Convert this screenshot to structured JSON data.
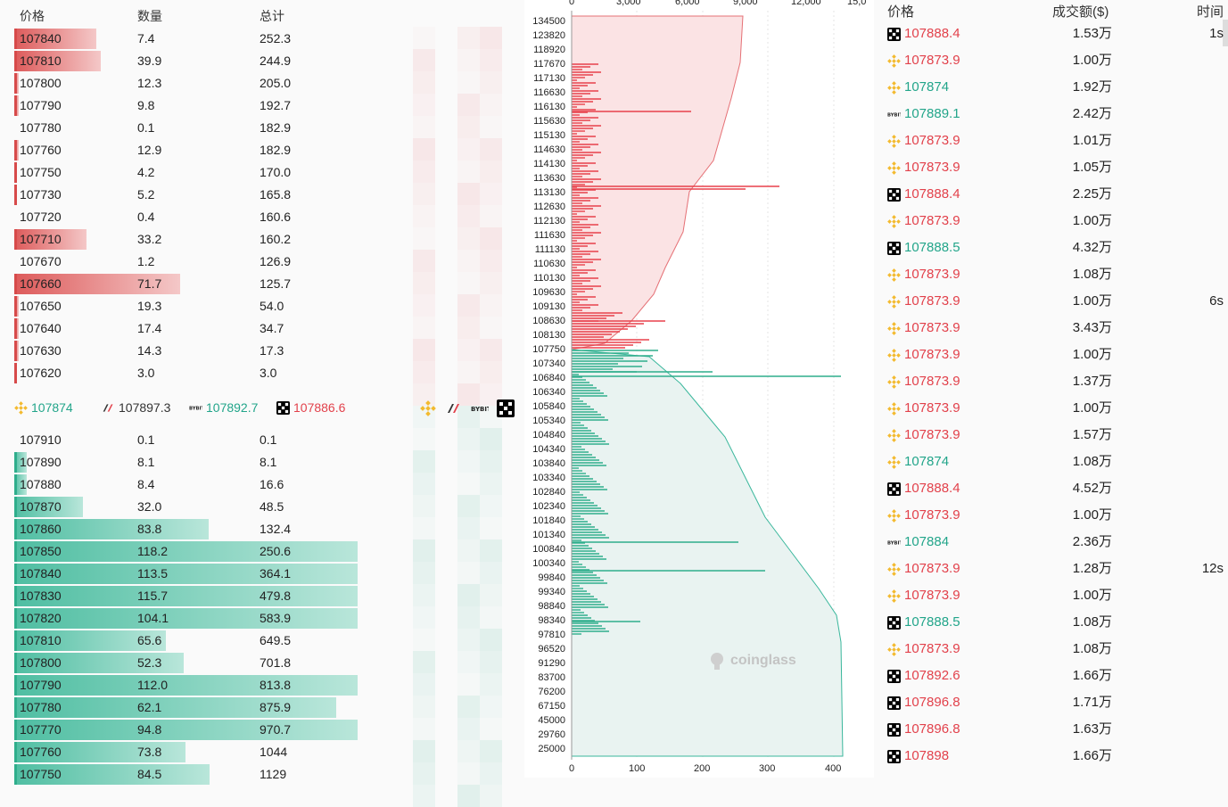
{
  "orderbook": {
    "headers": {
      "price": "价格",
      "qty": "数量",
      "total": "总计"
    },
    "asks": [
      {
        "price": "107840",
        "qty": "7.4",
        "total": "252.3",
        "w": 92
      },
      {
        "price": "107810",
        "qty": "39.9",
        "total": "244.9",
        "w": 97
      },
      {
        "price": "107800",
        "qty": "12.3",
        "total": "205.0",
        "w": 5
      },
      {
        "price": "107790",
        "qty": "9.8",
        "total": "192.7",
        "w": 5
      },
      {
        "price": "107780",
        "qty": "0.1",
        "total": "182.9",
        "w": 0
      },
      {
        "price": "107760",
        "qty": "12.9",
        "total": "182.9",
        "w": 5
      },
      {
        "price": "107750",
        "qty": "4.2",
        "total": "170.0",
        "w": 2
      },
      {
        "price": "107730",
        "qty": "5.2",
        "total": "165.8",
        "w": 3
      },
      {
        "price": "107720",
        "qty": "0.4",
        "total": "160.6",
        "w": 0
      },
      {
        "price": "107710",
        "qty": "33.2",
        "total": "160.2",
        "w": 81
      },
      {
        "price": "107670",
        "qty": "1.2",
        "total": "126.9",
        "w": 0
      },
      {
        "price": "107660",
        "qty": "71.7",
        "total": "125.7",
        "w": 186
      },
      {
        "price": "107650",
        "qty": "19.3",
        "total": "54.0",
        "w": 5
      },
      {
        "price": "107640",
        "qty": "17.4",
        "total": "34.7",
        "w": 5
      },
      {
        "price": "107630",
        "qty": "14.3",
        "total": "17.3",
        "w": 5
      },
      {
        "price": "107620",
        "qty": "3.0",
        "total": "3.0",
        "w": 3
      }
    ],
    "bids": [
      {
        "price": "107910",
        "qty": "0.1",
        "total": "0.1",
        "w": 0
      },
      {
        "price": "107890",
        "qty": "8.1",
        "total": "8.1",
        "w": 14
      },
      {
        "price": "107880",
        "qty": "8.4",
        "total": "16.6",
        "w": 14
      },
      {
        "price": "107870",
        "qty": "32.0",
        "total": "48.5",
        "w": 77
      },
      {
        "price": "107860",
        "qty": "83.8",
        "total": "132.4",
        "w": 218
      },
      {
        "price": "107850",
        "qty": "118.2",
        "total": "250.6",
        "w": 385
      },
      {
        "price": "107840",
        "qty": "113.5",
        "total": "364.1",
        "w": 385
      },
      {
        "price": "107830",
        "qty": "115.7",
        "total": "479.8",
        "w": 385
      },
      {
        "price": "107820",
        "qty": "104.1",
        "total": "583.9",
        "w": 385
      },
      {
        "price": "107810",
        "qty": "65.6",
        "total": "649.5",
        "w": 170
      },
      {
        "price": "107800",
        "qty": "52.3",
        "total": "701.8",
        "w": 190
      },
      {
        "price": "107790",
        "qty": "112.0",
        "total": "813.8",
        "w": 385
      },
      {
        "price": "107780",
        "qty": "62.1",
        "total": "875.9",
        "w": 361
      },
      {
        "price": "107770",
        "qty": "94.8",
        "total": "970.7",
        "w": 385
      },
      {
        "price": "107760",
        "qty": "73.8",
        "total": "1044",
        "w": 192
      },
      {
        "price": "107750",
        "qty": "84.5",
        "total": "1129",
        "w": 219
      }
    ],
    "mid": [
      {
        "icon": "binance-icon",
        "price": "107874",
        "color": "#22a58a"
      },
      {
        "icon": "okx-icon",
        "price": "107897.3",
        "color": "#333333"
      },
      {
        "icon": "bybit-icon",
        "price": "107892.7",
        "color": "#22a58a"
      },
      {
        "icon": "okx-cube-icon",
        "price": "107886.6",
        "color": "#e2414b"
      }
    ]
  },
  "depth_chart": {
    "x_top_ticks": [
      "0",
      "3,000",
      "6,000",
      "9,000",
      "12,000",
      "15,0"
    ],
    "x_bottom_ticks": [
      "0",
      "100",
      "200",
      "300",
      "400"
    ],
    "y_labels": [
      "134500",
      "123820",
      "118920",
      "117670",
      "117130",
      "116630",
      "116130",
      "115630",
      "115130",
      "114630",
      "114130",
      "113630",
      "113130",
      "112630",
      "112130",
      "111630",
      "111130",
      "110630",
      "110130",
      "109630",
      "109130",
      "108630",
      "108130",
      "107750",
      "107340",
      "106840",
      "106340",
      "105840",
      "105340",
      "104840",
      "104340",
      "103840",
      "103340",
      "102840",
      "102340",
      "101840",
      "101340",
      "100840",
      "100340",
      "99840",
      "99340",
      "98840",
      "98340",
      "97810",
      "96520",
      "91290",
      "83700",
      "76200",
      "67150",
      "45000",
      "29760",
      "25000"
    ],
    "watermark": "coinglass"
  },
  "trades": {
    "headers": {
      "price": "价格",
      "amount": "成交额($)",
      "time": "时间"
    },
    "rows": [
      {
        "icon": "okx-cube-icon",
        "price": "107888.4",
        "color": "#e2414b",
        "amount": "1.53万",
        "time": "1s"
      },
      {
        "icon": "binance-icon",
        "price": "107873.9",
        "color": "#e2414b",
        "amount": "1.00万",
        "time": ""
      },
      {
        "icon": "binance-icon",
        "price": "107874",
        "color": "#22a58a",
        "amount": "1.92万",
        "time": ""
      },
      {
        "icon": "bybit-icon",
        "price": "107889.1",
        "color": "#22a58a",
        "amount": "2.42万",
        "time": ""
      },
      {
        "icon": "binance-icon",
        "price": "107873.9",
        "color": "#e2414b",
        "amount": "1.01万",
        "time": ""
      },
      {
        "icon": "binance-icon",
        "price": "107873.9",
        "color": "#e2414b",
        "amount": "1.05万",
        "time": ""
      },
      {
        "icon": "okx-cube-icon",
        "price": "107888.4",
        "color": "#e2414b",
        "amount": "2.25万",
        "time": ""
      },
      {
        "icon": "binance-icon",
        "price": "107873.9",
        "color": "#e2414b",
        "amount": "1.00万",
        "time": ""
      },
      {
        "icon": "okx-cube-icon",
        "price": "107888.5",
        "color": "#22a58a",
        "amount": "4.32万",
        "time": ""
      },
      {
        "icon": "binance-icon",
        "price": "107873.9",
        "color": "#e2414b",
        "amount": "1.08万",
        "time": ""
      },
      {
        "icon": "binance-icon",
        "price": "107873.9",
        "color": "#e2414b",
        "amount": "1.00万",
        "time": "6s"
      },
      {
        "icon": "binance-icon",
        "price": "107873.9",
        "color": "#e2414b",
        "amount": "3.43万",
        "time": ""
      },
      {
        "icon": "binance-icon",
        "price": "107873.9",
        "color": "#e2414b",
        "amount": "1.00万",
        "time": ""
      },
      {
        "icon": "binance-icon",
        "price": "107873.9",
        "color": "#e2414b",
        "amount": "1.37万",
        "time": ""
      },
      {
        "icon": "binance-icon",
        "price": "107873.9",
        "color": "#e2414b",
        "amount": "1.00万",
        "time": ""
      },
      {
        "icon": "binance-icon",
        "price": "107873.9",
        "color": "#e2414b",
        "amount": "1.57万",
        "time": ""
      },
      {
        "icon": "binance-icon",
        "price": "107874",
        "color": "#22a58a",
        "amount": "1.08万",
        "time": ""
      },
      {
        "icon": "okx-cube-icon",
        "price": "107888.4",
        "color": "#e2414b",
        "amount": "4.52万",
        "time": ""
      },
      {
        "icon": "binance-icon",
        "price": "107873.9",
        "color": "#e2414b",
        "amount": "1.00万",
        "time": ""
      },
      {
        "icon": "bybit-icon",
        "price": "107884",
        "color": "#22a58a",
        "amount": "2.36万",
        "time": ""
      },
      {
        "icon": "binance-icon",
        "price": "107873.9",
        "color": "#e2414b",
        "amount": "1.28万",
        "time": "12s"
      },
      {
        "icon": "binance-icon",
        "price": "107873.9",
        "color": "#e2414b",
        "amount": "1.00万",
        "time": ""
      },
      {
        "icon": "okx-cube-icon",
        "price": "107888.5",
        "color": "#22a58a",
        "amount": "1.08万",
        "time": ""
      },
      {
        "icon": "binance-icon",
        "price": "107873.9",
        "color": "#e2414b",
        "amount": "1.08万",
        "time": ""
      },
      {
        "icon": "okx-cube-icon",
        "price": "107892.6",
        "color": "#e2414b",
        "amount": "1.66万",
        "time": ""
      },
      {
        "icon": "okx-cube-icon",
        "price": "107896.8",
        "color": "#e2414b",
        "amount": "1.71万",
        "time": ""
      },
      {
        "icon": "okx-cube-icon",
        "price": "107896.8",
        "color": "#e2414b",
        "amount": "1.63万",
        "time": ""
      },
      {
        "icon": "okx-cube-icon",
        "price": "107898",
        "color": "#e2414b",
        "amount": "1.66万",
        "time": ""
      }
    ]
  }
}
